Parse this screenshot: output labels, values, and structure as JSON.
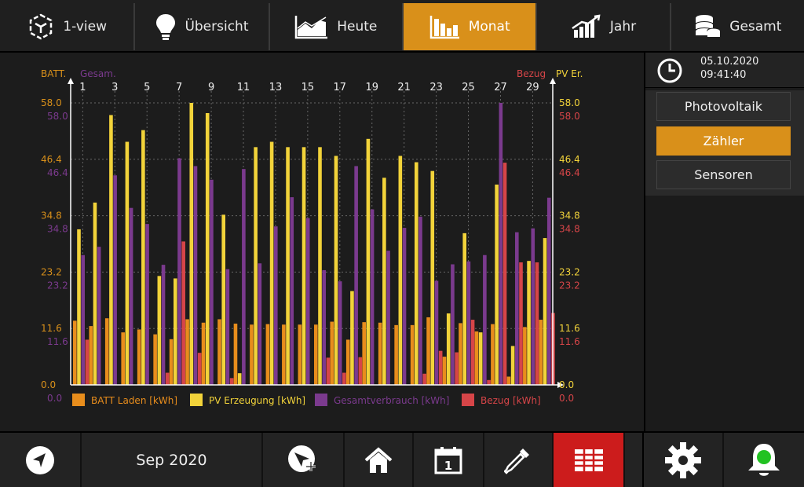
{
  "tabs": [
    {
      "label": "1-view",
      "icon": "cube-icon",
      "active": false
    },
    {
      "label": "Übersicht",
      "icon": "bulb-icon",
      "active": false
    },
    {
      "label": "Heute",
      "icon": "area-chart-icon",
      "active": false
    },
    {
      "label": "Monat",
      "icon": "bar-chart-icon",
      "active": true
    },
    {
      "label": "Jahr",
      "icon": "trend-chart-icon",
      "active": false
    },
    {
      "label": "Gesamt",
      "icon": "coin-stack-icon",
      "active": false
    }
  ],
  "datetime": {
    "date": "05.10.2020",
    "time": "09:41:40"
  },
  "side_buttons": [
    {
      "label": "Photovoltaik",
      "active": false
    },
    {
      "label": "Zähler",
      "active": true
    },
    {
      "label": "Sensoren",
      "active": false
    }
  ],
  "bottom": {
    "month_label": "Sep 2020"
  },
  "colors": {
    "accent": "#d9901a",
    "batt": "#e88d1c",
    "pv": "#f2d33a",
    "gesamt": "#7b3a8e",
    "bezug": "#d64548",
    "alarm": "#cc1c1c"
  },
  "chart_data": {
    "type": "bar",
    "axis_labels": {
      "left_outer": "BATT.",
      "left_inner": "Gesam.",
      "right_inner": "Bezug",
      "right_outer": "PV Er."
    },
    "x_ticks": [
      "1",
      "3",
      "5",
      "7",
      "9",
      "11",
      "13",
      "15",
      "17",
      "19",
      "21",
      "23",
      "25",
      "27",
      "29"
    ],
    "y_ticks_upper": [
      "58.0",
      "46.4",
      "34.8",
      "23.2",
      "11.6",
      "0.0"
    ],
    "y_ticks_lower": [
      "58.0",
      "46.4",
      "34.8",
      "23.2",
      "11.6",
      "0.0"
    ],
    "ylim": [
      0,
      58
    ],
    "days": [
      1,
      2,
      3,
      4,
      5,
      6,
      7,
      8,
      9,
      10,
      11,
      12,
      13,
      14,
      15,
      16,
      17,
      18,
      19,
      20,
      21,
      22,
      23,
      24,
      25,
      26,
      27,
      28,
      29,
      30
    ],
    "series": [
      {
        "name": "BATT Laden [kWh]",
        "values": [
          13.2,
          12.1,
          13.7,
          10.8,
          11.4,
          10.4,
          9.4,
          13.5,
          12.8,
          13.5,
          12.6,
          12.4,
          12.5,
          12.4,
          12.4,
          12.4,
          13.0,
          9.3,
          12.9,
          12.8,
          12.3,
          12.3,
          13.9,
          5.8,
          12.7,
          11.0,
          12.5,
          1.7,
          11.9,
          13.4
        ]
      },
      {
        "name": "PV Erzeugung [kWh]",
        "values": [
          32.0,
          37.5,
          55.5,
          50.0,
          52.4,
          22.4,
          21.9,
          58.0,
          55.9,
          35.0,
          2.4,
          48.9,
          50.0,
          48.9,
          48.9,
          48.9,
          47.1,
          19.3,
          50.6,
          42.6,
          47.1,
          45.8,
          44.0,
          14.7,
          31.2,
          10.8,
          41.2,
          8.0,
          25.5,
          30.2
        ]
      },
      {
        "name": "Gesamtverbrauch [kWh]",
        "values": [
          26.7,
          28.4,
          43.1,
          36.4,
          33.1,
          24.7,
          46.6,
          45.0,
          42.2,
          23.8,
          44.4,
          25.0,
          32.6,
          38.6,
          34.3,
          23.6,
          21.3,
          45.0,
          36.1,
          27.6,
          32.3,
          34.6,
          21.4,
          24.8,
          25.4,
          26.7,
          58.0,
          31.4,
          32.2,
          38.5
        ]
      },
      {
        "name": "Bezug [kWh]",
        "values": [
          9.3,
          0,
          0,
          0,
          0,
          2.5,
          29.5,
          6.6,
          0,
          1.4,
          0,
          0,
          0,
          0,
          0,
          5.6,
          2.5,
          5.7,
          0,
          0,
          0,
          2.3,
          7.0,
          6.7,
          13.4,
          1.0,
          45.7,
          25.2,
          25.2,
          14.8
        ]
      }
    ],
    "legend_position": "bottom",
    "grid": true
  }
}
